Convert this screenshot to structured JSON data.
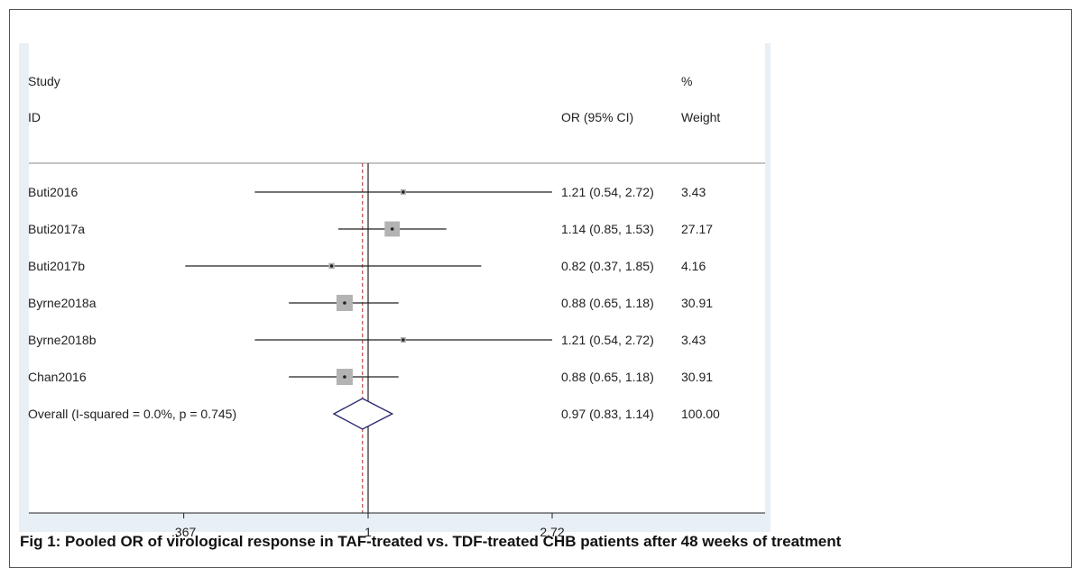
{
  "caption": "Fig 1: Pooled OR of virological response in TAF-treated vs. TDF-treated CHB patients after 48 weeks of treatment",
  "chart_data": {
    "type": "forest",
    "headers": {
      "study_line1": "Study",
      "study_line2": "ID",
      "or_label": "OR (95% CI)",
      "weight_line1": "%",
      "weight_line2": "Weight"
    },
    "studies": [
      {
        "id": "Buti2016",
        "or": 1.21,
        "lower": 0.54,
        "upper": 2.72,
        "ci_text": "1.21 (0.54, 2.72)",
        "weight": "3.43"
      },
      {
        "id": "Buti2017a",
        "or": 1.14,
        "lower": 0.85,
        "upper": 1.53,
        "ci_text": "1.14 (0.85, 1.53)",
        "weight": "27.17"
      },
      {
        "id": "Buti2017b",
        "or": 0.82,
        "lower": 0.37,
        "upper": 1.85,
        "ci_text": "0.82 (0.37, 1.85)",
        "weight": "4.16"
      },
      {
        "id": "Byrne2018a",
        "or": 0.88,
        "lower": 0.65,
        "upper": 1.18,
        "ci_text": "0.88 (0.65, 1.18)",
        "weight": "30.91"
      },
      {
        "id": "Byrne2018b",
        "or": 1.21,
        "lower": 0.54,
        "upper": 2.72,
        "ci_text": "1.21 (0.54, 2.72)",
        "weight": "3.43"
      },
      {
        "id": "Chan2016",
        "or": 0.88,
        "lower": 0.65,
        "upper": 1.18,
        "ci_text": "0.88 (0.65, 1.18)",
        "weight": "30.91"
      }
    ],
    "overall": {
      "label": "Overall  (I-squared = 0.0%, p = 0.745)",
      "or": 0.97,
      "lower": 0.83,
      "upper": 1.14,
      "ci_text": "0.97 (0.83, 1.14)",
      "weight": "100.00"
    },
    "x_scale": "log",
    "xlim": [
      0.367,
      2.72
    ],
    "x_ticks": [
      {
        "value": 0.367,
        "label": ".367"
      },
      {
        "value": 1,
        "label": "1"
      },
      {
        "value": 2.72,
        "label": "2.72"
      }
    ],
    "null_line": 1,
    "colors": {
      "line": "#222222",
      "box": "#b3b3b3",
      "overall_line": "#b22222",
      "diamond": "#2b2a6e"
    }
  }
}
